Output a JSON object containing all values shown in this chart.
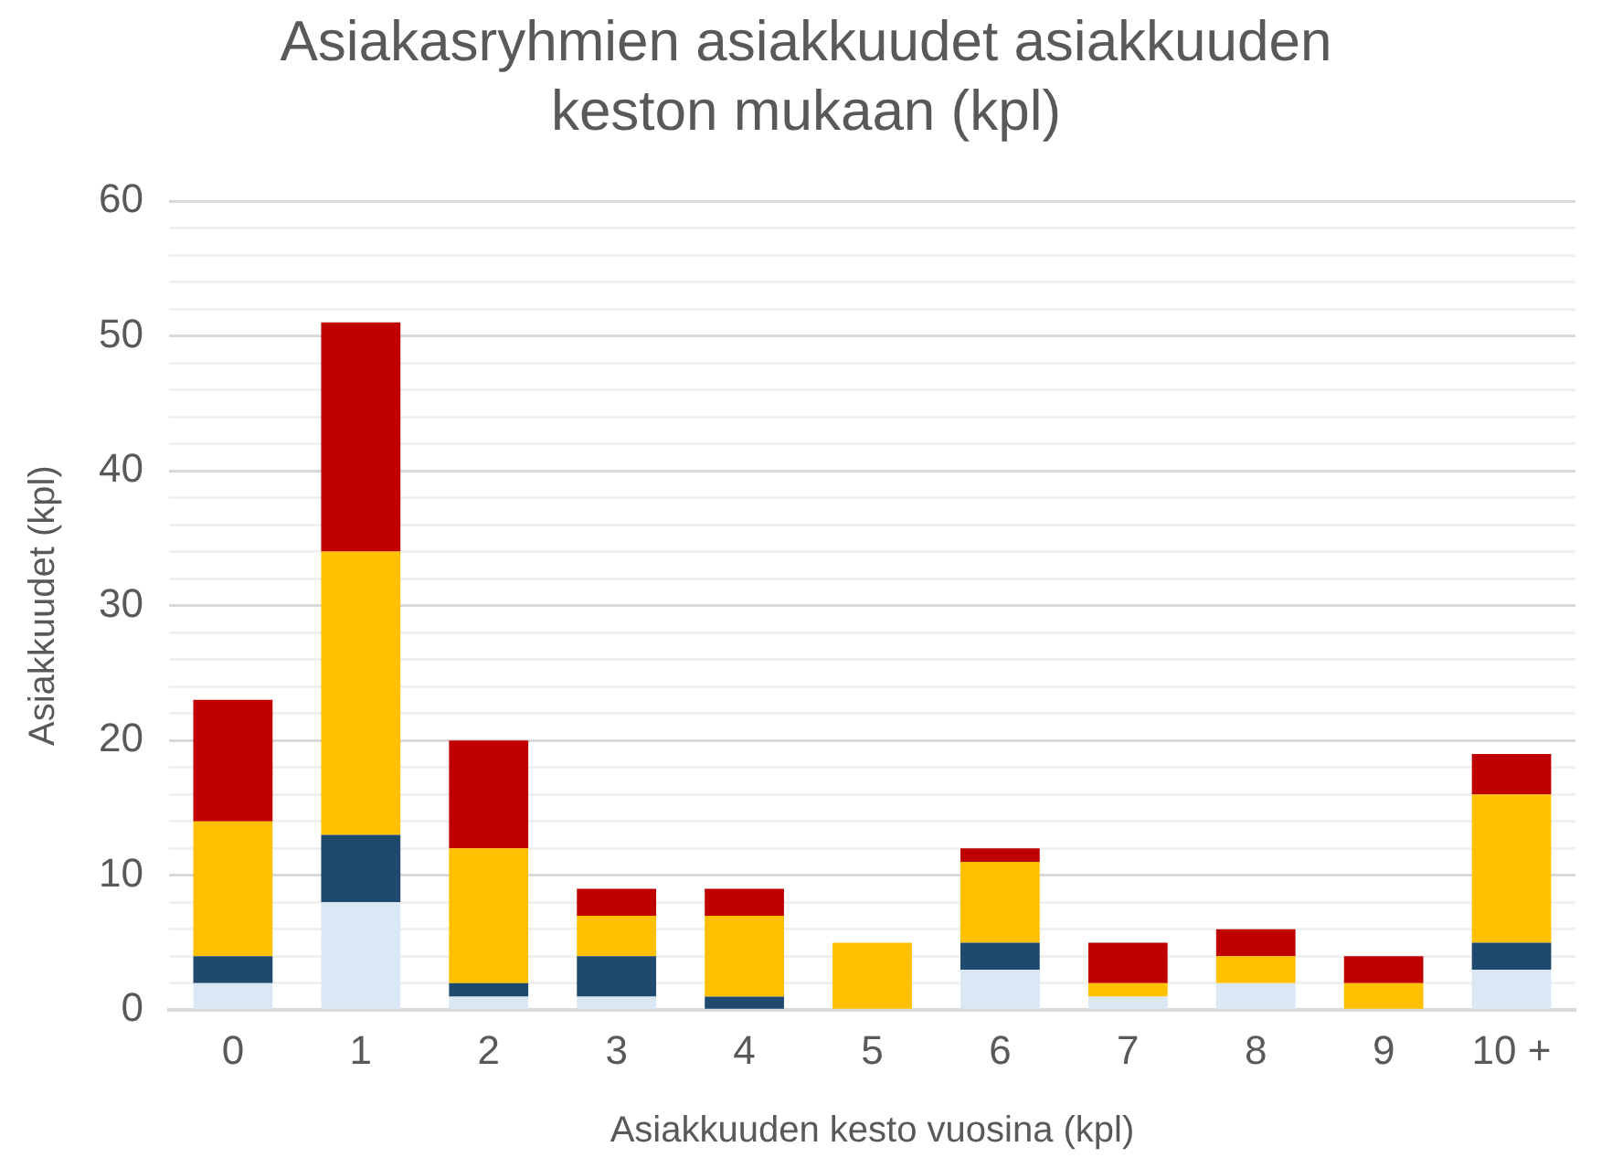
{
  "chart_data": {
    "type": "bar",
    "title": "Asiakasryhmien asiakkuudet asiakkuuden keston mukaan (kpl)",
    "xlabel": "Asiakkuuden kesto vuosina (kpl)",
    "ylabel": "Asiakkuudet (kpl)",
    "categories": [
      "0",
      "1",
      "2",
      "3",
      "4",
      "5",
      "6",
      "7",
      "8",
      "9",
      "10 +"
    ],
    "stacked": true,
    "grid": "y",
    "legend": false,
    "ylim": [
      0,
      60
    ],
    "yticks": [
      0,
      {
        "value": 2,
        "label": null
      },
      {
        "value": 4,
        "label": null
      },
      {
        "value": 6,
        "label": null
      },
      {
        "value": 8,
        "label": null
      },
      10,
      {
        "value": 12,
        "label": null
      },
      {
        "value": 14,
        "label": null
      },
      {
        "value": 16,
        "label": null
      },
      {
        "value": 18,
        "label": null
      },
      20,
      {
        "value": 22,
        "label": null
      },
      {
        "value": 24,
        "label": null
      },
      {
        "value": 26,
        "label": null
      },
      {
        "value": 28,
        "label": null
      },
      30,
      {
        "value": 32,
        "label": null
      },
      {
        "value": 34,
        "label": null
      },
      {
        "value": 36,
        "label": null
      },
      {
        "value": 38,
        "label": null
      },
      40,
      {
        "value": 42,
        "label": null
      },
      {
        "value": 44,
        "label": null
      },
      {
        "value": 46,
        "label": null
      },
      {
        "value": 48,
        "label": null
      },
      50,
      {
        "value": 52,
        "label": null
      },
      {
        "value": 54,
        "label": null
      },
      {
        "value": 56,
        "label": null
      },
      {
        "value": 58,
        "label": null
      },
      60
    ],
    "series": [
      {
        "color": "#dae8f5",
        "values": [
          2,
          8,
          1,
          1,
          0,
          0,
          3,
          1,
          2,
          0,
          3
        ]
      },
      {
        "color": "#1f4a6e",
        "values": [
          2,
          5,
          1,
          3,
          1,
          0,
          2,
          0,
          0,
          0,
          2
        ]
      },
      {
        "color": "#ffc000",
        "values": [
          10,
          21,
          10,
          3,
          6,
          5,
          6,
          1,
          2,
          2,
          11
        ]
      },
      {
        "color": "#c00000",
        "values": [
          9,
          17,
          8,
          2,
          2,
          0,
          1,
          3,
          2,
          2,
          3
        ]
      }
    ]
  }
}
